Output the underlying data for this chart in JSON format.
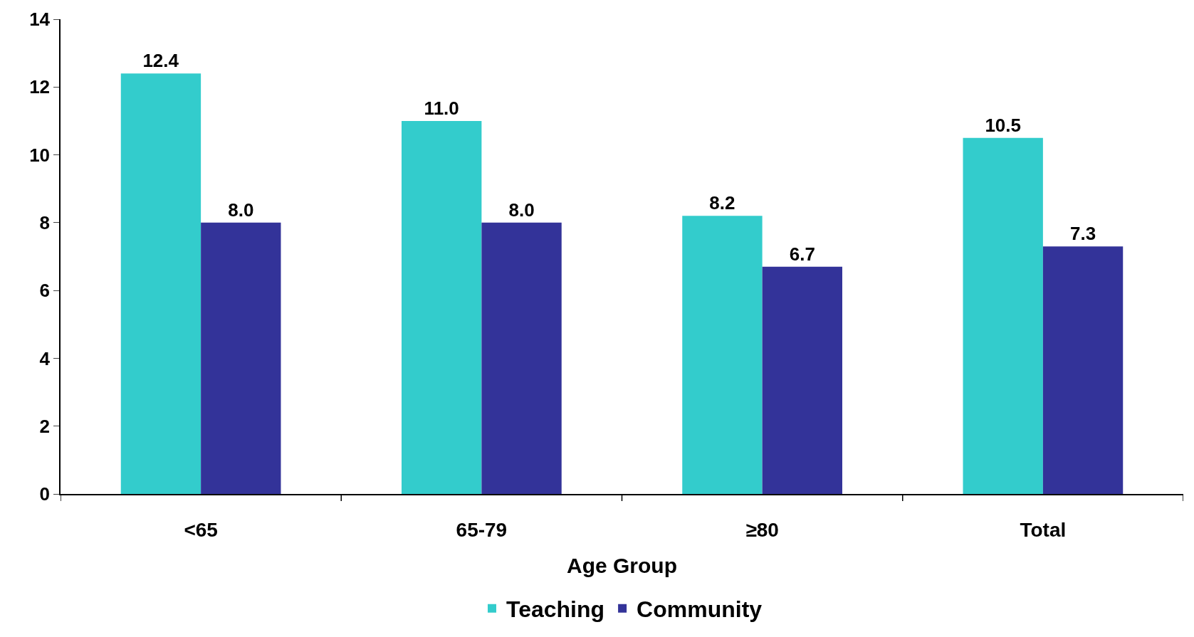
{
  "chart_data": {
    "type": "bar",
    "xlabel": "Age Group",
    "categories": [
      "<65",
      "65-79",
      "≥80",
      "Total"
    ],
    "series": [
      {
        "name": "Teaching",
        "color": "#33cccc",
        "values": [
          12.4,
          11.0,
          8.2,
          10.5
        ],
        "value_labels": [
          "12.4",
          "11.0",
          "8.2",
          "10.5"
        ]
      },
      {
        "name": "Community",
        "color": "#333399",
        "values": [
          8.0,
          8.0,
          6.7,
          7.3
        ],
        "value_labels": [
          "8.0",
          "8.0",
          "6.7",
          "7.3"
        ]
      }
    ],
    "ylim": [
      0,
      14
    ],
    "yticks": [
      0,
      2,
      4,
      6,
      8,
      10,
      12,
      14
    ],
    "legend": "bottom"
  }
}
